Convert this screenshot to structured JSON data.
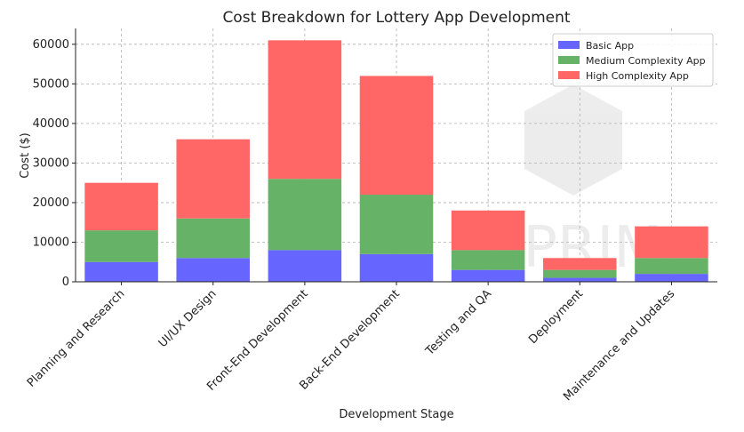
{
  "chart_data": {
    "type": "bar",
    "stacked": true,
    "title": "Cost Breakdown for Lottery App Development",
    "xlabel": "Development Stage",
    "ylabel": "Cost ($)",
    "ylim": [
      0,
      64000
    ],
    "yticks": [
      0,
      10000,
      20000,
      30000,
      40000,
      50000,
      60000
    ],
    "grid": true,
    "legend_position": "top-right",
    "categories": [
      "Planning and Research",
      "UI/UX Design",
      "Front-End Development",
      "Back-End Development",
      "Testing and QA",
      "Deployment",
      "Maintenance and Updates"
    ],
    "series": [
      {
        "name": "Basic App",
        "color": "#6666ff",
        "values": [
          5000,
          6000,
          8000,
          7000,
          3000,
          1000,
          2000
        ]
      },
      {
        "name": "Medium Complexity App",
        "color": "#66b266",
        "values": [
          8000,
          10000,
          18000,
          15000,
          5000,
          2000,
          4000
        ]
      },
      {
        "name": "High Complexity App",
        "color": "#ff6666",
        "values": [
          12000,
          20000,
          35000,
          30000,
          10000,
          3000,
          8000
        ]
      }
    ]
  },
  "watermark": {
    "text": "APRIM"
  }
}
